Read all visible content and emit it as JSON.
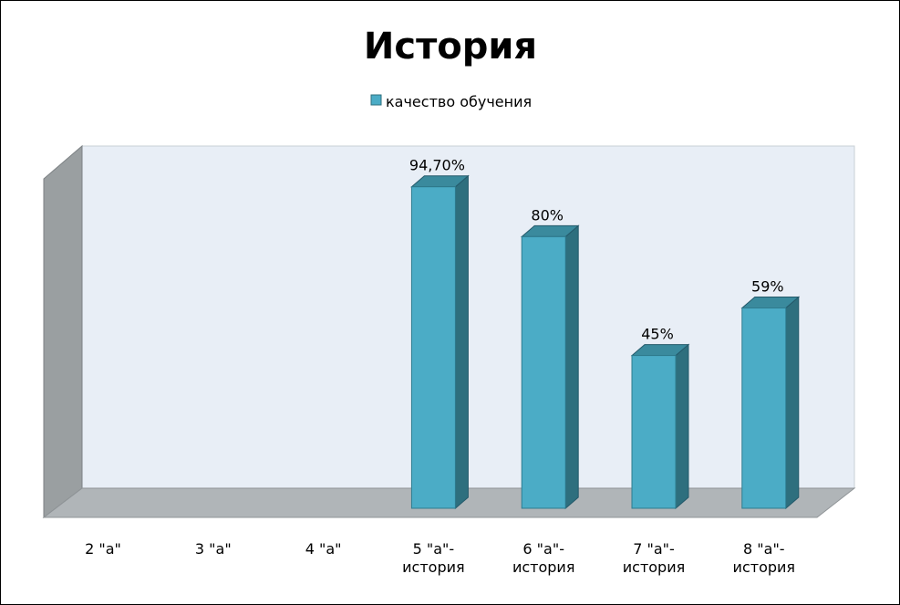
{
  "chart_data": {
    "type": "bar",
    "title": "История",
    "legend": {
      "position": "top",
      "entries": [
        "качество обучения"
      ]
    },
    "categories": [
      [
        "2 \"а\""
      ],
      [
        "3 \"а\""
      ],
      [
        "4 \"а\""
      ],
      [
        "5 \"а\"-",
        "история"
      ],
      [
        "6 \"а\"-",
        "история"
      ],
      [
        "7 \"а\"-",
        "история"
      ],
      [
        "8 \"а\"-",
        "история"
      ]
    ],
    "series": [
      {
        "name": "качество обучения",
        "values": [
          null,
          null,
          null,
          94.7,
          80,
          45,
          59
        ],
        "labels": [
          "",
          "",
          "",
          "94,70%",
          "80%",
          "45%",
          "59%"
        ]
      }
    ],
    "ylim": [
      0,
      100
    ],
    "grid": false,
    "style": "3d-column"
  },
  "colors": {
    "bar_front": "#4bacc6",
    "bar_side": "#2e6f7e",
    "bar_top": "#3a8a9d",
    "wall_back": "#e8eef6",
    "wall_side": "#9a9fa1",
    "floor": "#b0b5b8"
  }
}
